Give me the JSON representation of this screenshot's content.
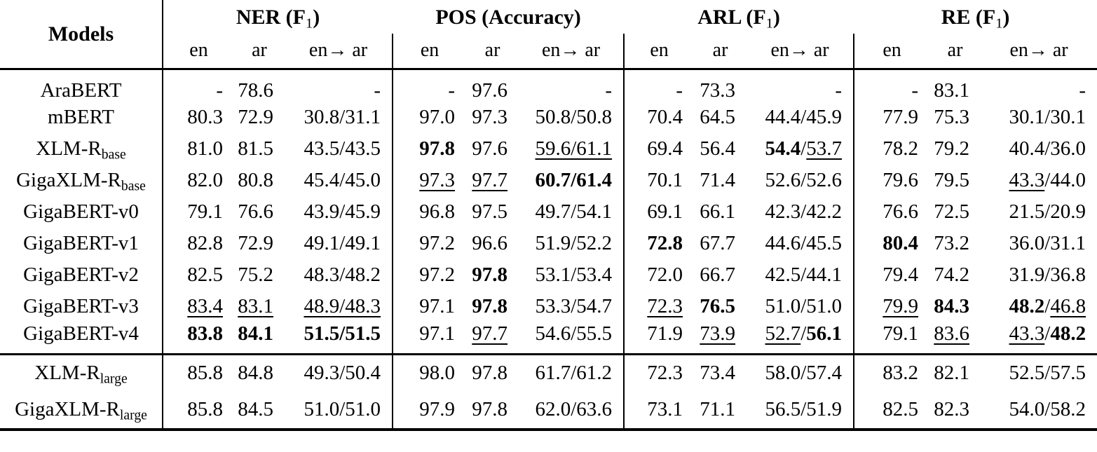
{
  "table": {
    "models_header": "Models",
    "groups": [
      {
        "title": "NER (F~1~)"
      },
      {
        "title": "POS (Accuracy)"
      },
      {
        "title": "ARL (F~1~)"
      },
      {
        "title": "RE (F~1~)"
      }
    ],
    "subheaders": [
      "en",
      "ar",
      "en→ ar"
    ],
    "sections": [
      {
        "rows": [
          {
            "model": "AraBERT",
            "cells": [
              "-",
              "78.6",
              "-",
              "-",
              "97.6",
              "-",
              "-",
              "73.3",
              "-",
              "-",
              "83.1",
              "-"
            ]
          },
          {
            "model": "mBERT",
            "cells": [
              "80.3",
              "72.9",
              "30.8/31.1",
              "97.0",
              "97.3",
              "50.8/50.8",
              "70.4",
              "64.5",
              "44.4/45.9",
              "77.9",
              "75.3",
              "30.1/30.1"
            ]
          },
          {
            "model": "XLM-R~base~",
            "cells": [
              "81.0",
              "81.5",
              "43.5/43.5",
              "**97.8**",
              "97.6",
              "__59.6/61.1__",
              "69.4",
              "56.4",
              "**54.4**/__53.7__",
              "78.2",
              "79.2",
              "40.4/36.0"
            ]
          },
          {
            "model": "GigaXLM-R~base~",
            "cells": [
              "82.0",
              "80.8",
              "45.4/45.0",
              "__97.3__",
              "__97.7__",
              "**60.7/61.4**",
              "70.1",
              "71.4",
              "52.6/52.6",
              "79.6",
              "79.5",
              "__43.3__/44.0"
            ]
          },
          {
            "model": "GigaBERT-v0",
            "cells": [
              "79.1",
              "76.6",
              "43.9/45.9",
              "96.8",
              "97.5",
              "49.7/54.1",
              "69.1",
              "66.1",
              "42.3/42.2",
              "76.6",
              "72.5",
              "21.5/20.9"
            ]
          },
          {
            "model": "GigaBERT-v1",
            "cells": [
              "82.8",
              "72.9",
              "49.1/49.1",
              "97.2",
              "96.6",
              "51.9/52.2",
              "**72.8**",
              "67.7",
              "44.6/45.5",
              "**80.4**",
              "73.2",
              "36.0/31.1"
            ]
          },
          {
            "model": "GigaBERT-v2",
            "cells": [
              "82.5",
              "75.2",
              "48.3/48.2",
              "97.2",
              "**97.8**",
              "53.1/53.4",
              "72.0",
              "66.7",
              "42.5/44.1",
              "79.4",
              "74.2",
              "31.9/36.8"
            ]
          },
          {
            "model": "GigaBERT-v3",
            "cells": [
              "__83.4__",
              "__83.1__",
              "__48.9/48.3__",
              "97.1",
              "**97.8**",
              "53.3/54.7",
              "__72.3__",
              "**76.5**",
              "51.0/51.0",
              "__79.9__",
              "**84.3**",
              "**48.2**/__46.8__"
            ]
          },
          {
            "model": "GigaBERT-v4",
            "cells": [
              "**83.8**",
              "**84.1**",
              "**51.5/51.5**",
              "97.1",
              "__97.7__",
              "54.6/55.5",
              "71.9",
              "__73.9__",
              "__52.7__/**56.1**",
              "79.1",
              "__83.6__",
              "__43.3__/**48.2**"
            ]
          }
        ]
      },
      {
        "rows": [
          {
            "model": "XLM-R~large~",
            "cells": [
              "85.8",
              "84.8",
              "49.3/50.4",
              "98.0",
              "97.8",
              "61.7/61.2",
              "72.3",
              "73.4",
              "58.0/57.4",
              "83.2",
              "82.1",
              "52.5/57.5"
            ]
          },
          {
            "model": "GigaXLM-R~large~",
            "cells": [
              "85.8",
              "84.5",
              "51.0/51.0",
              "97.9",
              "97.8",
              "62.0/63.6",
              "73.1",
              "71.1",
              "56.5/51.9",
              "82.5",
              "82.3",
              "54.0/58.2"
            ]
          }
        ]
      }
    ]
  }
}
